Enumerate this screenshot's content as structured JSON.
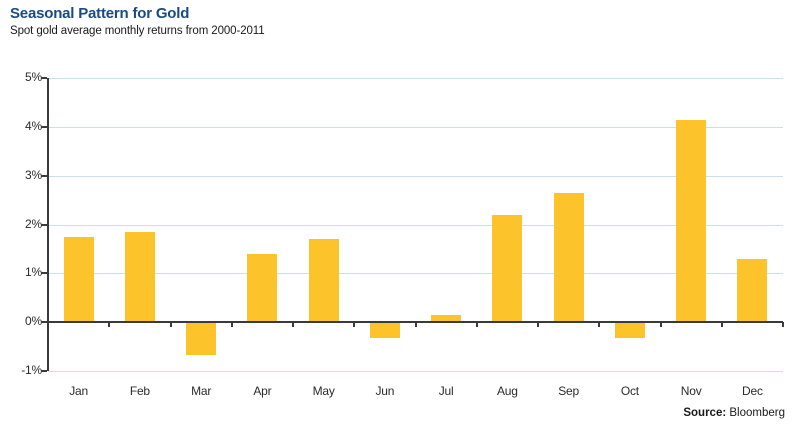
{
  "page": {
    "title": "Seasonal Pattern for Gold",
    "subtitle": "Spot gold average monthly returns from 2000-2011",
    "source_label": "Source:",
    "source_value": " Bloomberg"
  },
  "colors": {
    "title_text": "#1A4A85",
    "bar_fill": "#FCC32A",
    "gridline": "#C9E0EB",
    "axis_line": "#3A3A3A",
    "label_text": "#2B2B2B"
  },
  "chart_data": {
    "type": "bar",
    "title": "Seasonal Pattern for Gold",
    "subtitle": "Spot gold average monthly returns from 2000-2011",
    "categories": [
      "Jan",
      "Feb",
      "Mar",
      "Apr",
      "May",
      "Jun",
      "Jul",
      "Aug",
      "Sep",
      "Oct",
      "Nov",
      "Dec"
    ],
    "values": [
      1.75,
      1.85,
      -0.65,
      1.4,
      1.7,
      -0.3,
      0.15,
      2.2,
      2.65,
      -0.3,
      4.15,
      1.3
    ],
    "unit": "%",
    "xlabel": "",
    "ylabel": "",
    "ylim": [
      -1,
      5
    ],
    "yticks": [
      5,
      4,
      3,
      2,
      1,
      0,
      -1
    ],
    "ytick_labels": [
      "5%",
      "4%",
      "3%",
      "2%",
      "1%",
      "0%",
      "-1%"
    ],
    "grid": true,
    "legend": false,
    "source": "Bloomberg"
  }
}
